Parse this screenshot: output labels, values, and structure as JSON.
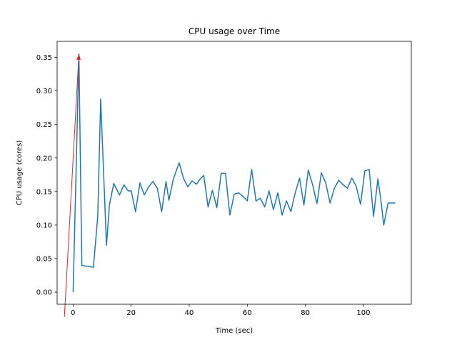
{
  "chart_data": {
    "type": "line",
    "title": "CPU usage over Time",
    "xlabel": "Time (sec)",
    "ylabel": "CPU usage (cores)",
    "xlim": [
      -5.5,
      116.5
    ],
    "ylim": [
      -0.018,
      0.374
    ],
    "xticks": [
      0,
      20,
      40,
      60,
      80,
      100
    ],
    "yticks": [
      0.0,
      0.05,
      0.1,
      0.15,
      0.2,
      0.25,
      0.3,
      0.35
    ],
    "ytick_labels": [
      "0.00",
      "0.05",
      "0.10",
      "0.15",
      "0.20",
      "0.25",
      "0.30",
      "0.35"
    ],
    "grid": false,
    "series": [
      {
        "color": "#1f77b4",
        "x": [
          0,
          2,
          3,
          4,
          6,
          7,
          8.5,
          9.5,
          11.5,
          12.5,
          14,
          16,
          17.5,
          19,
          20,
          21.5,
          23,
          24.5,
          26,
          27.5,
          29,
          30.5,
          32,
          33,
          34.5,
          36.5,
          38,
          39.5,
          41,
          42.5,
          44,
          45,
          46.5,
          48,
          49.5,
          51,
          52.5,
          54,
          55.5,
          57,
          58.5,
          60,
          61.5,
          63,
          64.5,
          66,
          67.5,
          69,
          70.5,
          72,
          73.5,
          75,
          76.5,
          78,
          79.5,
          81,
          82.5,
          84,
          85.5,
          87,
          88.5,
          90,
          91.5,
          93,
          94.5,
          96,
          97.5,
          99,
          100.5,
          102,
          103.5,
          105,
          106,
          107,
          108.5,
          110,
          111
        ],
        "y": [
          0.0,
          0.355,
          0.04,
          0.039,
          0.038,
          0.037,
          0.113,
          0.288,
          0.07,
          0.13,
          0.162,
          0.145,
          0.16,
          0.151,
          0.151,
          0.12,
          0.163,
          0.145,
          0.157,
          0.165,
          0.155,
          0.12,
          0.165,
          0.137,
          0.168,
          0.193,
          0.17,
          0.157,
          0.166,
          0.161,
          0.17,
          0.174,
          0.127,
          0.152,
          0.126,
          0.177,
          0.177,
          0.115,
          0.146,
          0.148,
          0.143,
          0.136,
          0.183,
          0.136,
          0.14,
          0.127,
          0.151,
          0.123,
          0.148,
          0.115,
          0.136,
          0.12,
          0.148,
          0.17,
          0.13,
          0.182,
          0.16,
          0.132,
          0.178,
          0.163,
          0.133,
          0.155,
          0.167,
          0.16,
          0.155,
          0.17,
          0.158,
          0.131,
          0.181,
          0.183,
          0.113,
          0.169,
          0.138,
          0.1,
          0.133,
          0.133,
          0.133
        ]
      }
    ],
    "annotation": {
      "type": "arrow",
      "color": "#d62728",
      "from": [
        -3,
        -0.037
      ],
      "to": [
        2,
        0.355
      ]
    }
  }
}
